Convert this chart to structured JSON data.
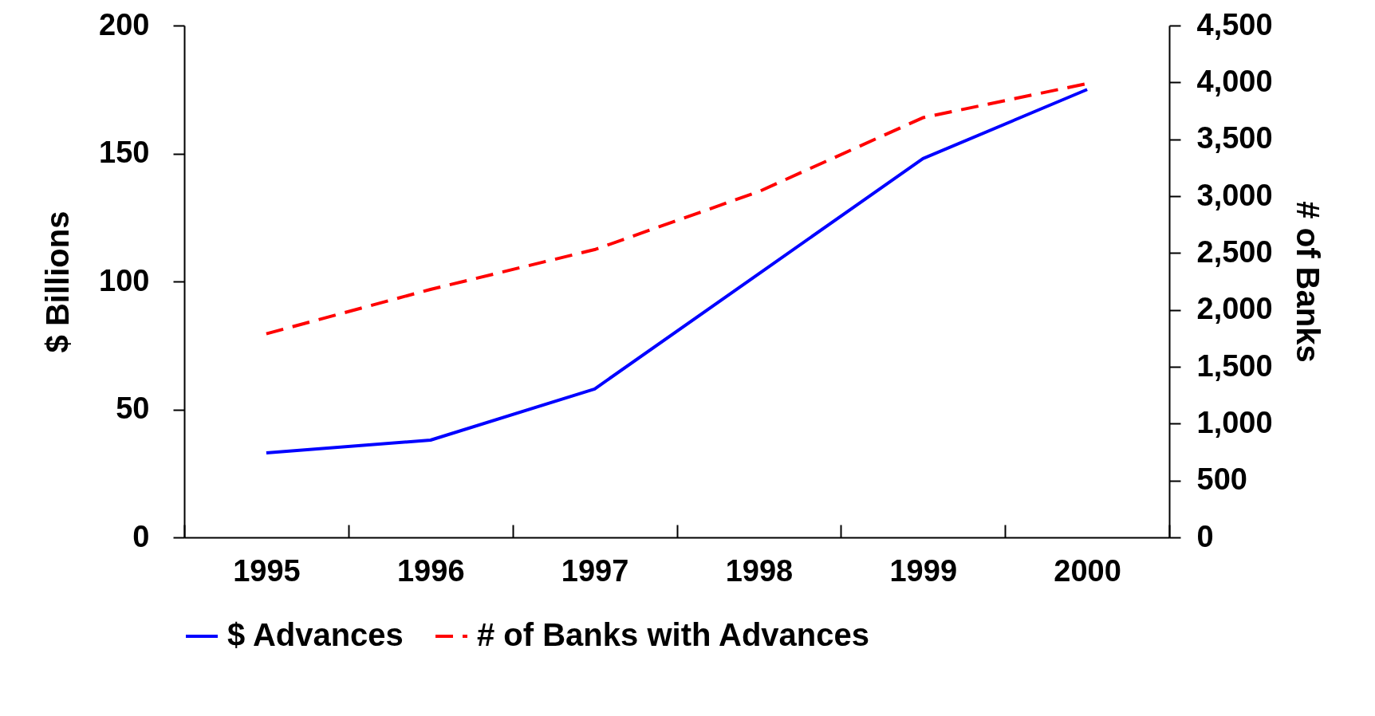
{
  "chart_data": {
    "type": "line",
    "ylabel": "$ Billions",
    "y2label": "# of Banks",
    "categories": [
      "1995",
      "1996",
      "1997",
      "1998",
      "1999",
      "2000"
    ],
    "series": [
      {
        "name": "$ Advances",
        "color": "#0000ff",
        "line_style": "solid",
        "values": [
          33,
          38,
          58,
          103,
          148,
          175
        ]
      },
      {
        "name": "# of Banks with Advances",
        "color": "#ff0000",
        "line_style": "dashed",
        "axis": "y2",
        "values": [
          1790,
          2180,
          2530,
          3040,
          3690,
          3990
        ]
      }
    ],
    "ylim": [
      0,
      200
    ],
    "yticks": [
      0,
      50,
      100,
      150,
      200
    ],
    "y2lim": [
      0,
      4500
    ],
    "y2ticks": [
      0,
      {
        "value": 500,
        "label": "500"
      },
      {
        "value": 1000,
        "label": "1,000"
      },
      {
        "value": 1500,
        "label": "1,500"
      },
      {
        "value": 2000,
        "label": "2,000"
      },
      {
        "value": 2500,
        "label": "2,500"
      },
      {
        "value": 3000,
        "label": "3,000"
      },
      {
        "value": 3500,
        "label": "3,500"
      },
      {
        "value": 4000,
        "label": "4,000"
      },
      {
        "value": 4500,
        "label": "4,500"
      }
    ],
    "grid": false,
    "legend": "bottom",
    "marker": "none"
  }
}
